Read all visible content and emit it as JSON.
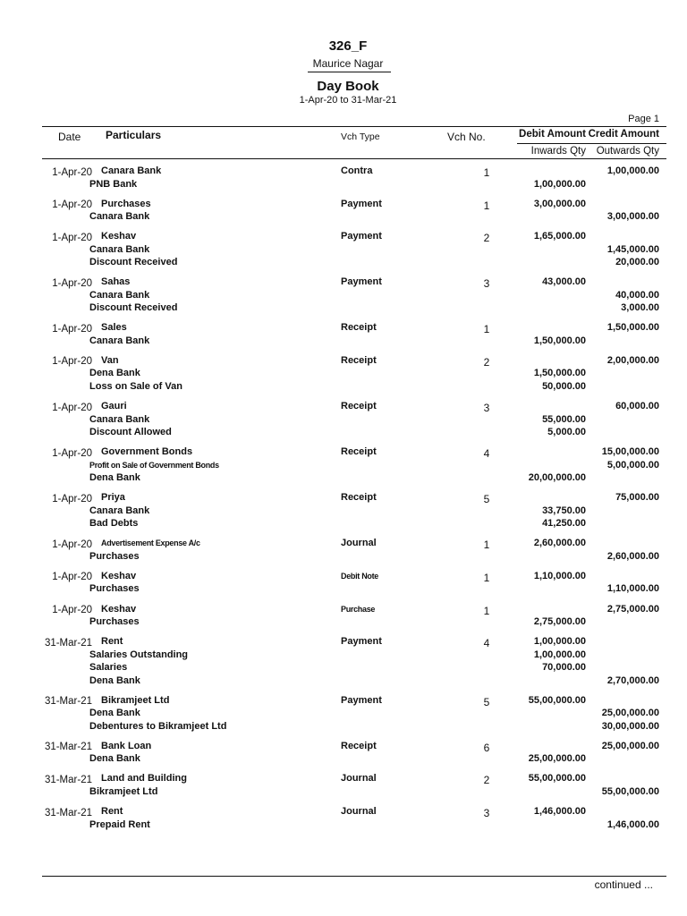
{
  "header": {
    "company": "326_F",
    "address": "Maurice Nagar",
    "title": "Day Book",
    "period": "1-Apr-20 to 31-Mar-21",
    "page": "Page 1"
  },
  "columns": {
    "date": "Date",
    "particulars": "Particulars",
    "vch_type": "Vch Type",
    "vch_no": "Vch No.",
    "debit": "Debit Amount",
    "credit": "Credit Amount",
    "inwards": "Inwards Qty",
    "outwards": "Outwards Qty"
  },
  "entries": [
    {
      "date": "1-Apr-20",
      "vch_type": "Contra",
      "vch_no": "1",
      "lines": [
        {
          "name": "Canara Bank",
          "debit": "",
          "credit": "1,00,000.00"
        },
        {
          "name": "PNB Bank",
          "debit": "1,00,000.00",
          "credit": ""
        }
      ]
    },
    {
      "date": "1-Apr-20",
      "vch_type": "Payment",
      "vch_no": "1",
      "lines": [
        {
          "name": "Purchases",
          "debit": "3,00,000.00",
          "credit": ""
        },
        {
          "name": "Canara Bank",
          "debit": "",
          "credit": "3,00,000.00"
        }
      ]
    },
    {
      "date": "1-Apr-20",
      "vch_type": "Payment",
      "vch_no": "2",
      "lines": [
        {
          "name": "Keshav",
          "debit": "1,65,000.00",
          "credit": ""
        },
        {
          "name": "Canara Bank",
          "debit": "",
          "credit": "1,45,000.00"
        },
        {
          "name": "Discount Received",
          "debit": "",
          "credit": "20,000.00"
        }
      ]
    },
    {
      "date": "1-Apr-20",
      "vch_type": "Payment",
      "vch_no": "3",
      "lines": [
        {
          "name": "Sahas",
          "debit": "43,000.00",
          "credit": ""
        },
        {
          "name": "Canara Bank",
          "debit": "",
          "credit": "40,000.00"
        },
        {
          "name": "Discount Received",
          "debit": "",
          "credit": "3,000.00"
        }
      ]
    },
    {
      "date": "1-Apr-20",
      "vch_type": "Receipt",
      "vch_no": "1",
      "lines": [
        {
          "name": "Sales",
          "debit": "",
          "credit": "1,50,000.00"
        },
        {
          "name": "Canara Bank",
          "debit": "1,50,000.00",
          "credit": ""
        }
      ]
    },
    {
      "date": "1-Apr-20",
      "vch_type": "Receipt",
      "vch_no": "2",
      "lines": [
        {
          "name": "Van",
          "debit": "",
          "credit": "2,00,000.00"
        },
        {
          "name": "Dena Bank",
          "debit": "1,50,000.00",
          "credit": ""
        },
        {
          "name": "Loss on Sale of Van",
          "debit": "50,000.00",
          "credit": ""
        }
      ]
    },
    {
      "date": "1-Apr-20",
      "vch_type": "Receipt",
      "vch_no": "3",
      "lines": [
        {
          "name": "Gauri",
          "debit": "",
          "credit": "60,000.00"
        },
        {
          "name": "Canara Bank",
          "debit": "55,000.00",
          "credit": ""
        },
        {
          "name": "Discount Allowed",
          "debit": "5,000.00",
          "credit": ""
        }
      ]
    },
    {
      "date": "1-Apr-20",
      "vch_type": "Receipt",
      "vch_no": "4",
      "lines": [
        {
          "name": "Government Bonds",
          "debit": "",
          "credit": "15,00,000.00"
        },
        {
          "name": "Profit on Sale of Government Bonds",
          "small": true,
          "debit": "",
          "credit": "5,00,000.00"
        },
        {
          "name": "Dena Bank",
          "debit": "20,00,000.00",
          "credit": ""
        }
      ]
    },
    {
      "date": "1-Apr-20",
      "vch_type": "Receipt",
      "vch_no": "5",
      "lines": [
        {
          "name": "Priya",
          "debit": "",
          "credit": "75,000.00"
        },
        {
          "name": "Canara Bank",
          "debit": "33,750.00",
          "credit": ""
        },
        {
          "name": "Bad Debts",
          "debit": "41,250.00",
          "credit": ""
        }
      ]
    },
    {
      "date": "1-Apr-20",
      "vch_type": "Journal",
      "vch_no": "1",
      "lines": [
        {
          "name": "Advertisement Expense A/c",
          "small": true,
          "debit": "2,60,000.00",
          "credit": ""
        },
        {
          "name": "Purchases",
          "debit": "",
          "credit": "2,60,000.00"
        }
      ]
    },
    {
      "date": "1-Apr-20",
      "vch_type": "Debit Note",
      "vch_type_small": true,
      "vch_no": "1",
      "lines": [
        {
          "name": "Keshav",
          "debit": "1,10,000.00",
          "credit": ""
        },
        {
          "name": "Purchases",
          "debit": "",
          "credit": "1,10,000.00"
        }
      ]
    },
    {
      "date": "1-Apr-20",
      "vch_type": "Purchase",
      "vch_type_small": true,
      "vch_no": "1",
      "lines": [
        {
          "name": "Keshav",
          "debit": "",
          "credit": "2,75,000.00"
        },
        {
          "name": "Purchases",
          "debit": "2,75,000.00",
          "credit": ""
        }
      ]
    },
    {
      "date": "31-Mar-21",
      "vch_type": "Payment",
      "vch_no": "4",
      "lines": [
        {
          "name": "Rent",
          "debit": "1,00,000.00",
          "credit": ""
        },
        {
          "name": "Salaries Outstanding",
          "debit": "1,00,000.00",
          "credit": ""
        },
        {
          "name": "Salaries",
          "debit": "70,000.00",
          "credit": ""
        },
        {
          "name": "Dena Bank",
          "debit": "",
          "credit": "2,70,000.00"
        }
      ]
    },
    {
      "date": "31-Mar-21",
      "vch_type": "Payment",
      "vch_no": "5",
      "lines": [
        {
          "name": "Bikramjeet Ltd",
          "debit": "55,00,000.00",
          "credit": ""
        },
        {
          "name": "Dena Bank",
          "debit": "",
          "credit": "25,00,000.00"
        },
        {
          "name": "Debentures to Bikramjeet Ltd",
          "debit": "",
          "credit": "30,00,000.00"
        }
      ]
    },
    {
      "date": "31-Mar-21",
      "vch_type": "Receipt",
      "vch_no": "6",
      "lines": [
        {
          "name": "Bank Loan",
          "debit": "",
          "credit": "25,00,000.00"
        },
        {
          "name": "Dena Bank",
          "debit": "25,00,000.00",
          "credit": ""
        }
      ]
    },
    {
      "date": "31-Mar-21",
      "vch_type": "Journal",
      "vch_no": "2",
      "lines": [
        {
          "name": "Land and Building",
          "debit": "55,00,000.00",
          "credit": ""
        },
        {
          "name": "Bikramjeet Ltd",
          "debit": "",
          "credit": "55,00,000.00"
        }
      ]
    },
    {
      "date": "31-Mar-21",
      "vch_type": "Journal",
      "vch_no": "3",
      "lines": [
        {
          "name": "Rent",
          "debit": "1,46,000.00",
          "credit": ""
        },
        {
          "name": "Prepaid Rent",
          "debit": "",
          "credit": "1,46,000.00"
        }
      ]
    }
  ],
  "footer": {
    "continued": "continued ..."
  }
}
